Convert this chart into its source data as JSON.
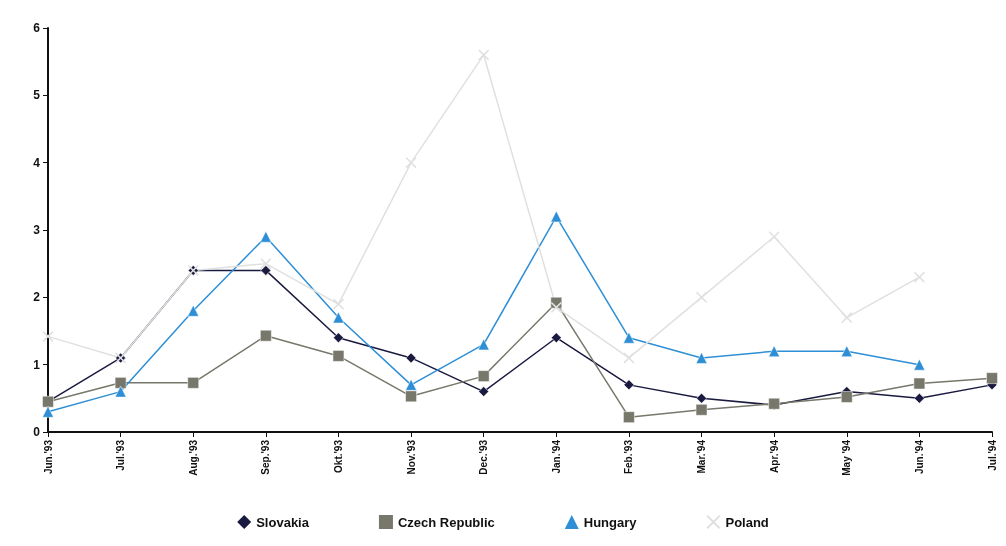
{
  "chart_data": {
    "type": "line",
    "categories": [
      "Jun.'93",
      "Jul.'93",
      "Aug.'93",
      "Sep.'93",
      "Okt.'93",
      "Nov.'93",
      "Dec.'93",
      "Jan.'94",
      "Feb.'93",
      "Mar.'94",
      "Apr.'94",
      "May '94",
      "Jun.'94",
      "Jul.'94"
    ],
    "series": [
      {
        "name": "Slovakia",
        "color": "#1a1a40",
        "marker": "diamond",
        "values": [
          0.45,
          1.1,
          2.4,
          2.4,
          1.4,
          1.1,
          0.6,
          1.4,
          0.7,
          0.5,
          0.4,
          0.6,
          0.5,
          0.7
        ]
      },
      {
        "name": "Czech Republic",
        "color": "#77776b",
        "marker": "square",
        "values": [
          0.45,
          0.73,
          0.73,
          1.43,
          1.13,
          0.53,
          0.83,
          1.92,
          0.22,
          0.33,
          0.42,
          0.52,
          0.72,
          0.8
        ]
      },
      {
        "name": "Hungary",
        "color": "#2e8fd6",
        "marker": "triangle",
        "values": [
          0.3,
          0.6,
          1.8,
          2.9,
          1.7,
          0.7,
          1.3,
          3.2,
          1.4,
          1.1,
          1.2,
          1.2,
          1.0,
          null
        ]
      },
      {
        "name": "Poland",
        "color": "#e0e0e0",
        "marker": "cross",
        "values": [
          1.42,
          1.1,
          2.4,
          2.5,
          1.9,
          4.0,
          5.6,
          1.85,
          1.1,
          2.0,
          2.9,
          1.7,
          2.3,
          null
        ]
      }
    ],
    "ylim": [
      0,
      6
    ],
    "yticks": [
      0,
      1,
      2,
      3,
      4,
      5,
      6
    ],
    "grid": false,
    "legend": "bottom"
  }
}
